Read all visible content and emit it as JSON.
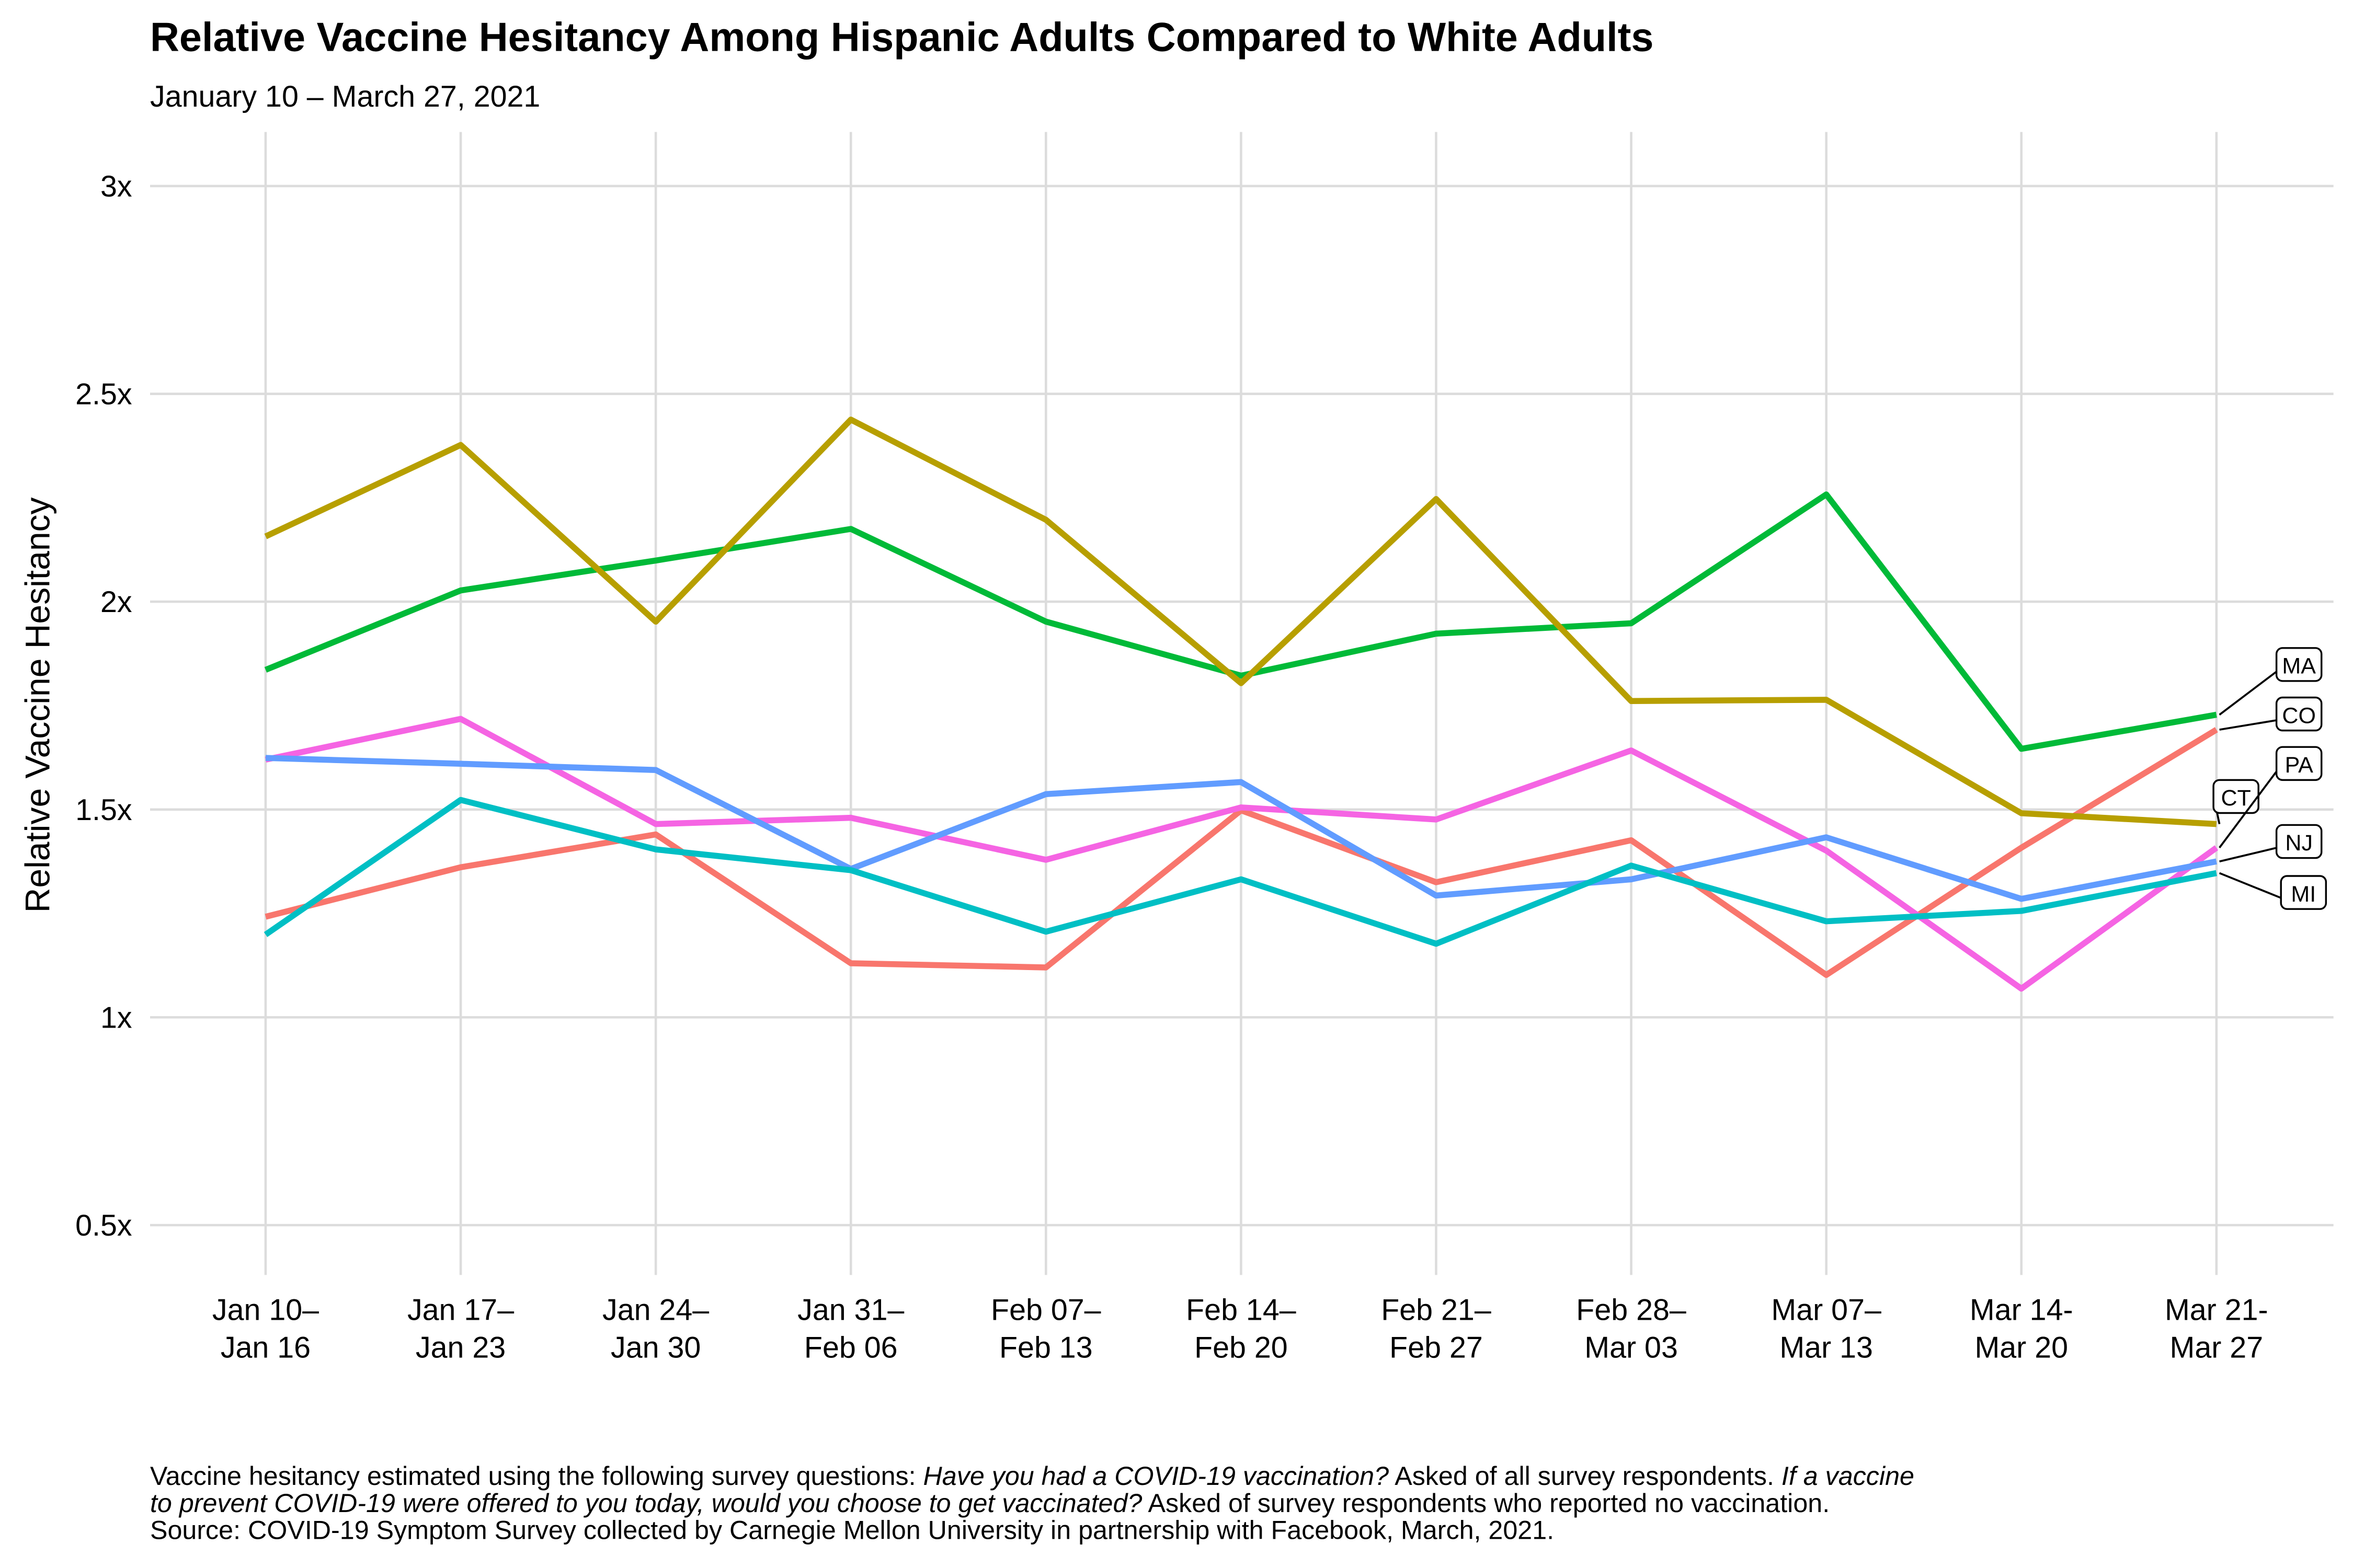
{
  "chart_data": {
    "type": "line",
    "title": "Relative Vaccine Hesitancy Among Hispanic Adults Compared to White Adults",
    "subtitle": "January 10 – March 27, 2021",
    "y_label": "Relative Vaccine Hesitancy",
    "categories": [
      [
        "Jan 10–",
        "Jan 16"
      ],
      [
        "Jan 17–",
        "Jan 23"
      ],
      [
        "Jan 24–",
        "Jan 30"
      ],
      [
        "Jan 31–",
        "Feb 06"
      ],
      [
        "Feb 07–",
        "Feb 13"
      ],
      [
        "Feb 14–",
        "Feb 20"
      ],
      [
        "Feb 21–",
        "Feb 27"
      ],
      [
        "Feb 28–",
        "Mar 03"
      ],
      [
        "Mar 07–",
        "Mar 13"
      ],
      [
        "Mar 14-",
        "Mar 20"
      ],
      [
        "Mar 21-",
        "Mar 27"
      ]
    ],
    "ylim": [
      0.38,
      3.13
    ],
    "yticks": [
      {
        "value": 0.5,
        "label": "0.5x"
      },
      {
        "value": 1,
        "label": "1x"
      },
      {
        "value": 1.5,
        "label": "1.5x"
      },
      {
        "value": 2,
        "label": "2x"
      },
      {
        "value": 2.5,
        "label": "2.5x"
      },
      {
        "value": 3,
        "label": "3x"
      }
    ],
    "grid": true,
    "series": [
      {
        "name": "MA",
        "color": "#00BA38",
        "values": [
          1.836,
          2.027,
          2.099,
          2.175,
          1.952,
          1.822,
          1.923,
          1.948,
          2.258,
          1.646,
          1.728
        ]
      },
      {
        "name": "CO",
        "color": "#F8766D",
        "values": [
          1.242,
          1.361,
          1.44,
          1.13,
          1.12,
          1.498,
          1.325,
          1.426,
          1.102,
          1.408,
          1.692
        ]
      },
      {
        "name": "CT",
        "color": "#B79F00",
        "values": [
          2.157,
          2.377,
          1.952,
          2.438,
          2.197,
          1.804,
          2.247,
          1.761,
          1.764,
          1.491,
          1.465
        ]
      },
      {
        "name": "PA",
        "color": "#F564E3",
        "values": [
          1.62,
          1.718,
          1.465,
          1.48,
          1.379,
          1.505,
          1.476,
          1.642,
          1.401,
          1.069,
          1.408
        ]
      },
      {
        "name": "NJ",
        "color": "#619CFF",
        "values": [
          1.624,
          1.61,
          1.595,
          1.357,
          1.537,
          1.566,
          1.293,
          1.332,
          1.433,
          1.285,
          1.375
        ]
      },
      {
        "name": "MI",
        "color": "#00BFC4",
        "values": [
          1.199,
          1.523,
          1.404,
          1.354,
          1.206,
          1.332,
          1.177,
          1.365,
          1.231,
          1.256,
          1.347
        ]
      }
    ],
    "caption": [
      [
        {
          "text": "Vaccine hesitancy estimated using the following survey questions: ",
          "italic": false
        },
        {
          "text": "Have you had a COVID-19 vaccination?",
          "italic": true
        },
        {
          "text": " Asked of all survey respondents. ",
          "italic": false
        },
        {
          "text": "If a vaccine",
          "italic": true
        }
      ],
      [
        {
          "text": "to prevent COVID-19 were offered to you today, would you choose to get vaccinated?",
          "italic": true
        },
        {
          "text": " Asked of survey respondents who reported no vaccination.",
          "italic": false
        }
      ],
      [
        {
          "text": "Source: COVID-19 Symptom Survey collected by Carnegie Mellon University in partnership with Facebook, March, 2021.",
          "italic": false
        }
      ]
    ]
  }
}
